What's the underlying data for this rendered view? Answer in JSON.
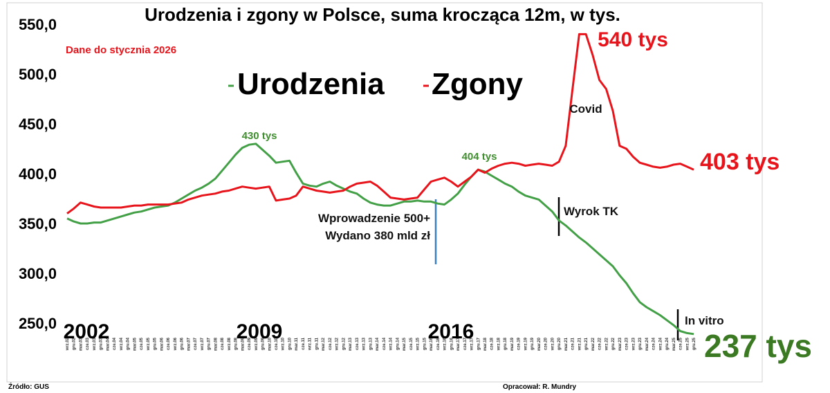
{
  "chart_data": {
    "type": "line",
    "title": "Urodzenia i zgony w Polsce, suma krocząca 12m, w tys.",
    "subtitle": "Dane do stycznia 2026",
    "source": "Źródło: GUS",
    "credit": "Opracował: R. Mundry",
    "categories": [
      "wrz.02",
      "gru.02",
      "mar.03",
      "cze.03",
      "wrz.03",
      "gru.03",
      "mar.04",
      "cze.04",
      "wrz.04",
      "gru.04",
      "mar.05",
      "cze.05",
      "wrz.05",
      "gru.05",
      "mar.06",
      "cze.06",
      "wrz.06",
      "gru.06",
      "mar.07",
      "cze.07",
      "wrz.07",
      "gru.07",
      "mar.08",
      "cze.08",
      "wrz.08",
      "gru.08",
      "mar.09",
      "cze.09",
      "wrz.09",
      "gru.09",
      "mar.10",
      "cze.10",
      "wrz.10",
      "gru.10",
      "mar.11",
      "cze.11",
      "wrz.11",
      "gru.11",
      "mar.12",
      "cze.12",
      "wrz.12",
      "gru.12",
      "mar.13",
      "cze.13",
      "wrz.13",
      "gru.13",
      "mar.14",
      "cze.14",
      "wrz.14",
      "gru.14",
      "mar.15",
      "cze.15",
      "wrz.15",
      "gru.15",
      "mar.16",
      "cze.16",
      "wrz.16",
      "gru.16",
      "mar.17",
      "cze.17",
      "wrz.17",
      "gru.17",
      "mar.18",
      "cze.18",
      "wrz.18",
      "gru.18",
      "mar.19",
      "cze.19",
      "wrz.19",
      "gru.19",
      "mar.20",
      "cze.20",
      "wrz.20",
      "gru.20",
      "mar.21",
      "cze.21",
      "wrz.21",
      "gru.21",
      "mar.22",
      "cze.22",
      "wrz.22",
      "gru.22",
      "mar.23",
      "cze.23",
      "wrz.23",
      "gru.23",
      "mar.24",
      "cze.24",
      "wrz.24",
      "gru.24",
      "mar.25",
      "cze.25",
      "wrz.25",
      "gru.25"
    ],
    "series": [
      {
        "name": "Urodzenia",
        "color": "#43a047",
        "values": [
          355,
          352,
          350,
          350,
          351,
          351,
          353,
          355,
          357,
          359,
          361,
          362,
          364,
          366,
          367,
          368,
          371,
          375,
          379,
          383,
          386,
          390,
          395,
          403,
          411,
          419,
          426,
          429,
          430,
          424,
          418,
          411,
          412,
          413,
          401,
          390,
          388,
          387,
          390,
          392,
          388,
          385,
          382,
          380,
          375,
          371,
          369,
          368,
          368,
          370,
          372,
          372,
          373,
          372,
          372,
          370,
          369,
          374,
          380,
          389,
          397,
          404,
          402,
          398,
          394,
          390,
          387,
          382,
          378,
          376,
          374,
          368,
          362,
          353,
          348,
          342,
          336,
          331,
          325,
          319,
          313,
          307,
          298,
          290,
          280,
          271,
          266,
          262,
          258,
          253,
          248,
          242,
          240,
          239
        ]
      },
      {
        "name": "Zgony",
        "color": "#e8141b",
        "values": [
          360,
          365,
          371,
          369,
          367,
          366,
          366,
          366,
          366,
          367,
          368,
          368,
          369,
          369,
          369,
          369,
          370,
          371,
          374,
          376,
          378,
          379,
          380,
          382,
          383,
          385,
          387,
          386,
          385,
          386,
          387,
          373,
          374,
          375,
          378,
          387,
          385,
          383,
          382,
          381,
          382,
          383,
          387,
          390,
          391,
          392,
          388,
          382,
          376,
          375,
          374,
          375,
          376,
          384,
          392,
          394,
          396,
          392,
          387,
          392,
          397,
          404,
          401,
          405,
          408,
          410,
          411,
          410,
          408,
          409,
          410,
          409,
          408,
          412,
          428,
          484,
          540,
          540,
          519,
          494,
          485,
          463,
          428,
          425,
          417,
          411,
          409,
          407,
          406,
          407,
          409,
          410,
          407,
          404
        ]
      }
    ],
    "ylim": [
      235,
      555
    ],
    "yticks": [
      {
        "value": 250,
        "label": "250,0"
      },
      {
        "value": 300,
        "label": "300,0"
      },
      {
        "value": 350,
        "label": "350,0"
      },
      {
        "value": 400,
        "label": "400,0"
      },
      {
        "value": 450,
        "label": "450,0"
      },
      {
        "value": 500,
        "label": "500,0"
      },
      {
        "value": 550,
        "label": "550,0"
      }
    ],
    "grid": false,
    "annotations": [
      "430 tys",
      "404 tys",
      "540 tys",
      "403 tys",
      "237 tys",
      "Covid",
      "Wprowadzenie 500+",
      "Wydano 380 mld zł",
      "Wyrok TK",
      "In vitro",
      "2002",
      "2009",
      "2016"
    ]
  }
}
